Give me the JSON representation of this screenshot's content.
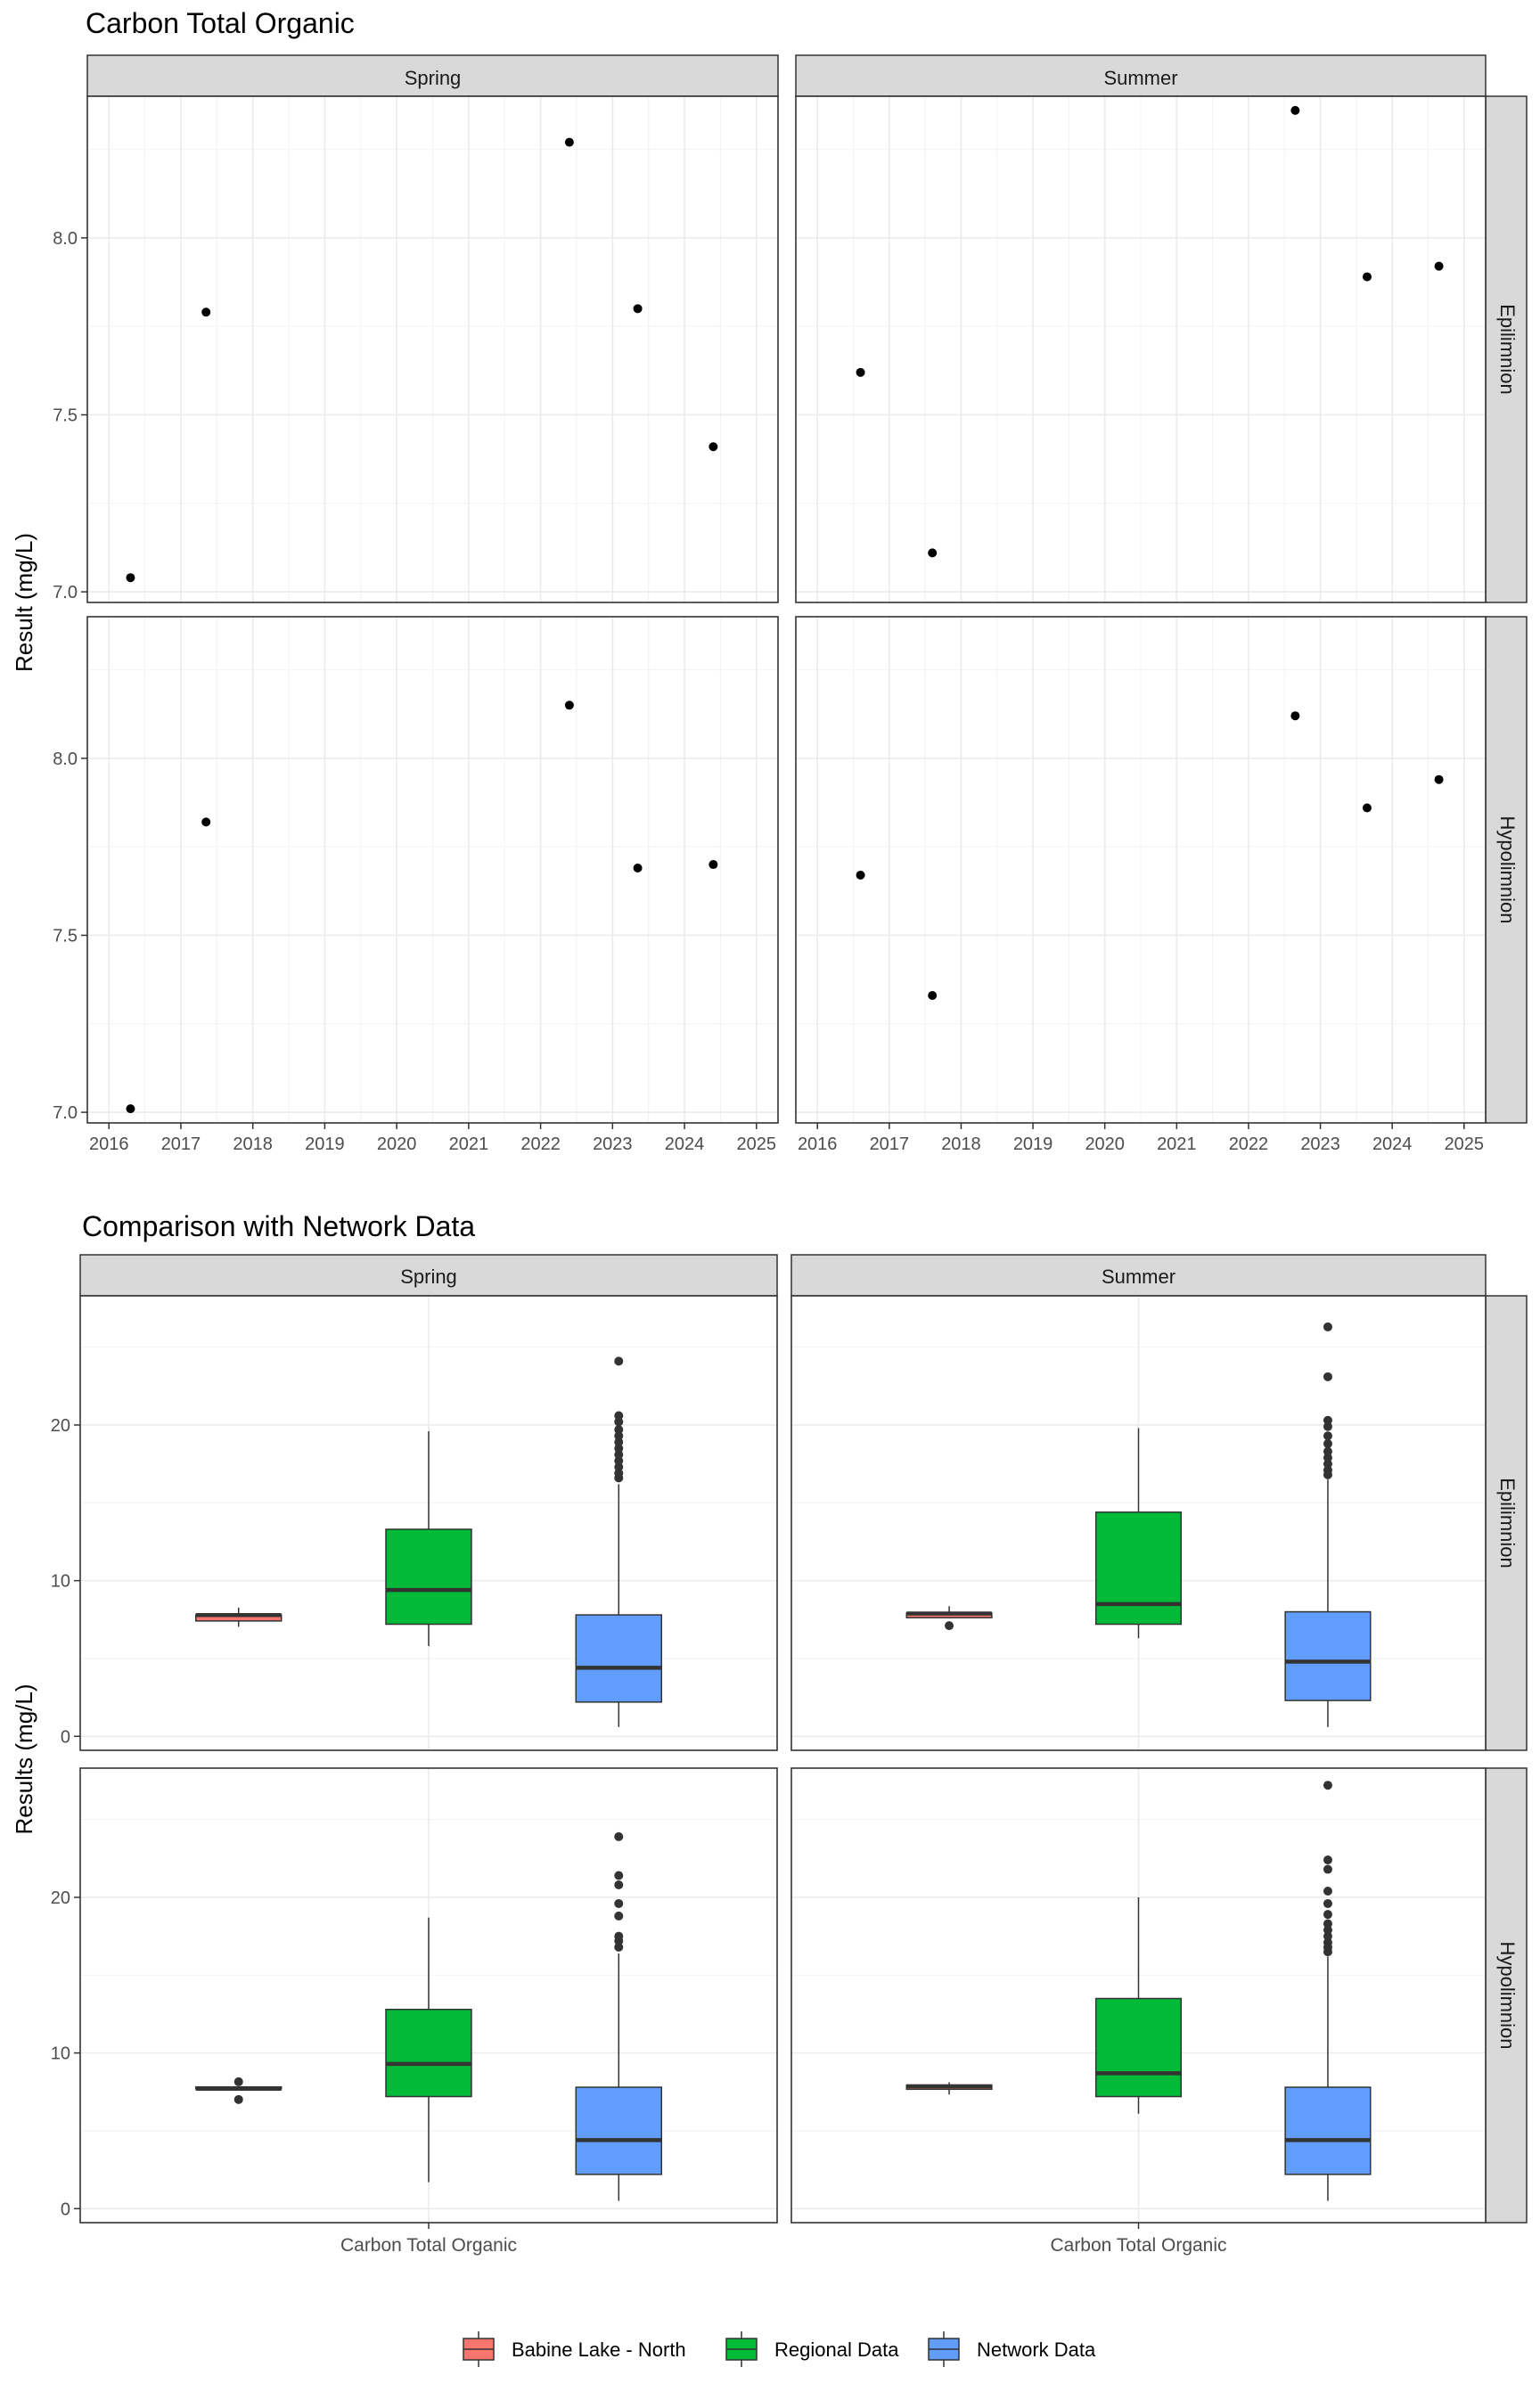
{
  "chart_data": [
    {
      "type": "scatter",
      "title": "Carbon Total Organic",
      "xlabel": "",
      "ylabel": "Result (mg/L)",
      "columns": [
        "Spring",
        "Summer"
      ],
      "rows": [
        "Epilimnion",
        "Hypolimnion"
      ],
      "xlim": [
        2015.7,
        2025.3
      ],
      "x_ticks": [
        "2016",
        "2017",
        "2018",
        "2019",
        "2020",
        "2021",
        "2022",
        "2023",
        "2024",
        "2025"
      ],
      "y_ticks": [
        "7.0",
        "7.5",
        "8.0"
      ],
      "grid": true,
      "panels": [
        {
          "column": "Spring",
          "row": "Epilimnion",
          "ylim": [
            6.97,
            8.4
          ],
          "x": [
            2016.3,
            2017.35,
            2022.4,
            2023.35,
            2024.4
          ],
          "y": [
            7.04,
            7.79,
            8.27,
            7.8,
            7.41
          ]
        },
        {
          "column": "Summer",
          "row": "Epilimnion",
          "ylim": [
            6.97,
            8.4
          ],
          "x": [
            2016.6,
            2017.6,
            2022.65,
            2023.65,
            2024.65
          ],
          "y": [
            7.62,
            7.11,
            8.36,
            7.89,
            7.92
          ]
        },
        {
          "column": "Spring",
          "row": "Hypolimnion",
          "ylim": [
            6.97,
            8.4
          ],
          "x": [
            2016.3,
            2017.35,
            2022.4,
            2023.35,
            2024.4
          ],
          "y": [
            7.01,
            7.82,
            8.15,
            7.69,
            7.7
          ]
        },
        {
          "column": "Summer",
          "row": "Hypolimnion",
          "ylim": [
            6.97,
            8.4
          ],
          "x": [
            2016.6,
            2017.6,
            2022.65,
            2023.65,
            2024.65
          ],
          "y": [
            7.67,
            7.33,
            8.12,
            7.86,
            7.94
          ]
        }
      ]
    },
    {
      "type": "box",
      "title": "Comparison with Network Data",
      "xlabel": "",
      "ylabel": "Results (mg/L)",
      "columns": [
        "Spring",
        "Summer"
      ],
      "rows": [
        "Epilimnion",
        "Hypolimnion"
      ],
      "category": "Carbon Total Organic",
      "ylim": [
        -0.9,
        28.3
      ],
      "y_ticks": [
        "0",
        "10",
        "20"
      ],
      "legend_position": "bottom",
      "series": [
        {
          "name": "Babine Lake - North",
          "color": "#F8766D"
        },
        {
          "name": "Regional Data",
          "color": "#00BA38"
        },
        {
          "name": "Network Data",
          "color": "#619CFF"
        }
      ],
      "panels": [
        {
          "column": "Spring",
          "row": "Epilimnion",
          "boxes": [
            {
              "series": "Babine Lake - North",
              "min": 7.04,
              "q1": 7.41,
              "median": 7.79,
              "q3": 7.8,
              "max": 8.27,
              "outliers": []
            },
            {
              "series": "Regional Data",
              "min": 5.8,
              "q1": 7.2,
              "median": 9.4,
              "q3": 13.3,
              "max": 19.6,
              "outliers": []
            },
            {
              "series": "Network Data",
              "min": 0.6,
              "q1": 2.2,
              "median": 4.4,
              "q3": 7.8,
              "max": 16.2,
              "outliers": [
                16.6,
                16.9,
                17.3,
                17.7,
                18.1,
                18.5,
                18.9,
                19.3,
                19.7,
                20.2,
                20.6,
                24.1
              ]
            }
          ]
        },
        {
          "column": "Summer",
          "row": "Epilimnion",
          "boxes": [
            {
              "series": "Babine Lake - North",
              "min": 7.62,
              "q1": 7.62,
              "median": 7.89,
              "q3": 7.92,
              "max": 8.36,
              "outliers": [
                7.11
              ]
            },
            {
              "series": "Regional Data",
              "min": 6.3,
              "q1": 7.2,
              "median": 8.5,
              "q3": 14.4,
              "max": 19.8,
              "outliers": []
            },
            {
              "series": "Network Data",
              "min": 0.6,
              "q1": 2.3,
              "median": 4.8,
              "q3": 8.0,
              "max": 16.5,
              "outliers": [
                16.8,
                17.1,
                17.5,
                17.9,
                18.3,
                18.8,
                19.3,
                19.9,
                20.3,
                23.1,
                26.3
              ]
            }
          ]
        },
        {
          "column": "Spring",
          "row": "Hypolimnion",
          "boxes": [
            {
              "series": "Babine Lake - North",
              "min": 7.69,
              "q1": 7.7,
              "median": 7.7,
              "q3": 7.82,
              "max": 7.82,
              "outliers": [
                7.01,
                8.15
              ]
            },
            {
              "series": "Regional Data",
              "min": 1.7,
              "q1": 7.2,
              "median": 9.3,
              "q3": 12.8,
              "max": 18.7,
              "outliers": []
            },
            {
              "series": "Network Data",
              "min": 0.5,
              "q1": 2.2,
              "median": 4.4,
              "q3": 7.8,
              "max": 16.4,
              "outliers": [
                16.8,
                17.2,
                17.5,
                18.8,
                19.6,
                20.8,
                21.4,
                23.9
              ]
            }
          ]
        },
        {
          "column": "Summer",
          "row": "Hypolimnion",
          "boxes": [
            {
              "series": "Babine Lake - North",
              "min": 7.33,
              "q1": 7.67,
              "median": 7.86,
              "q3": 7.94,
              "max": 8.12,
              "outliers": []
            },
            {
              "series": "Regional Data",
              "min": 6.1,
              "q1": 7.2,
              "median": 8.7,
              "q3": 13.5,
              "max": 20.0,
              "outliers": []
            },
            {
              "series": "Network Data",
              "min": 0.5,
              "q1": 2.2,
              "median": 4.4,
              "q3": 7.8,
              "max": 16.2,
              "outliers": [
                16.5,
                16.8,
                17.1,
                17.5,
                17.9,
                18.3,
                18.9,
                19.6,
                20.4,
                21.8,
                22.4,
                27.2
              ]
            }
          ]
        }
      ]
    }
  ]
}
